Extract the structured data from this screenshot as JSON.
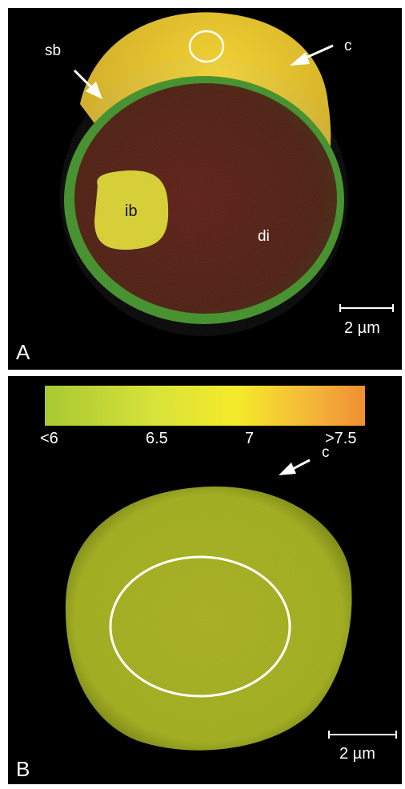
{
  "panel_a": {
    "letter": "A",
    "labels": {
      "sb": "sb",
      "c": "c",
      "ib": "ib",
      "di": "di"
    },
    "scale_label": "2 µm"
  },
  "panel_b": {
    "letter": "B",
    "colorbar_ticks": [
      "<6",
      "6.5",
      "7",
      ">7.5"
    ],
    "labels": {
      "c": "c"
    },
    "scale_label": "2 µm"
  }
}
